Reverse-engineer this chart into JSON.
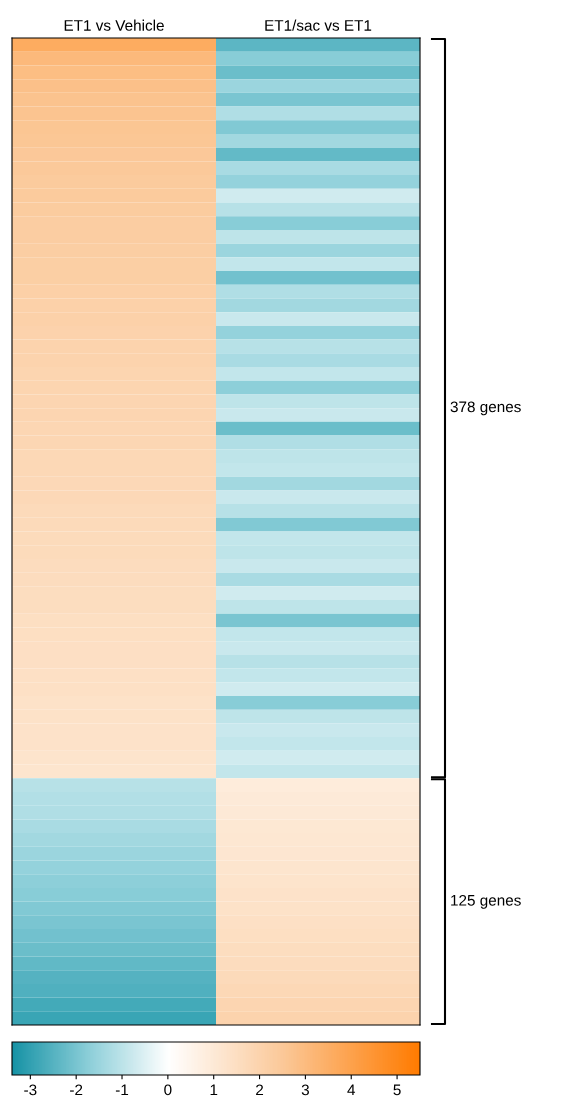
{
  "chart_data": {
    "type": "heatmap",
    "categories": [
      "ET1 vs Vehicle",
      "ET1/sac vs ET1"
    ],
    "y_categories": [
      null,
      null,
      null,
      null,
      null,
      null,
      null,
      null,
      null,
      null,
      null,
      null,
      null,
      null,
      null,
      null,
      null,
      null,
      null,
      null,
      null,
      null,
      null,
      null,
      null,
      null,
      null,
      null,
      null,
      null,
      null,
      null,
      null,
      null,
      null,
      null,
      null,
      null,
      null,
      null,
      null,
      null,
      null,
      null,
      null,
      null,
      null,
      null,
      null,
      null,
      null,
      null,
      null,
      null,
      null,
      null,
      null,
      null,
      null,
      null,
      null,
      null,
      null,
      null,
      null,
      null,
      null,
      null,
      null,
      null,
      null,
      null
    ],
    "cells": [
      [
        3.6,
        -2.4
      ],
      [
        3.1,
        -1.8
      ],
      [
        2.9,
        -2.2
      ],
      [
        2.8,
        -1.5
      ],
      [
        2.7,
        -2.0
      ],
      [
        2.65,
        -1.2
      ],
      [
        2.6,
        -1.9
      ],
      [
        2.55,
        -1.4
      ],
      [
        2.5,
        -2.3
      ],
      [
        2.45,
        -1.3
      ],
      [
        2.4,
        -1.6
      ],
      [
        2.4,
        -0.7
      ],
      [
        2.35,
        -1.1
      ],
      [
        2.3,
        -1.8
      ],
      [
        2.3,
        -1.0
      ],
      [
        2.25,
        -1.5
      ],
      [
        2.2,
        -0.9
      ],
      [
        2.2,
        -2.1
      ],
      [
        2.15,
        -1.2
      ],
      [
        2.1,
        -1.4
      ],
      [
        2.1,
        -0.8
      ],
      [
        2.05,
        -1.6
      ],
      [
        2.0,
        -1.1
      ],
      [
        2.0,
        -1.3
      ],
      [
        1.95,
        -0.9
      ],
      [
        1.95,
        -1.7
      ],
      [
        1.9,
        -1.0
      ],
      [
        1.9,
        -0.8
      ],
      [
        1.85,
        -2.2
      ],
      [
        1.85,
        -1.2
      ],
      [
        1.8,
        -1.0
      ],
      [
        1.8,
        -0.9
      ],
      [
        1.75,
        -1.4
      ],
      [
        1.75,
        -0.8
      ],
      [
        1.7,
        -1.1
      ],
      [
        1.7,
        -1.9
      ],
      [
        1.65,
        -0.9
      ],
      [
        1.65,
        -1.0
      ],
      [
        1.6,
        -0.8
      ],
      [
        1.6,
        -1.3
      ],
      [
        1.55,
        -0.7
      ],
      [
        1.55,
        -1.0
      ],
      [
        1.5,
        -2.0
      ],
      [
        1.5,
        -0.9
      ],
      [
        1.45,
        -0.8
      ],
      [
        1.45,
        -1.1
      ],
      [
        1.4,
        -0.9
      ],
      [
        1.4,
        -0.7
      ],
      [
        1.35,
        -1.8
      ],
      [
        1.35,
        -1.0
      ],
      [
        1.3,
        -0.8
      ],
      [
        1.3,
        -0.9
      ],
      [
        1.25,
        -0.7
      ],
      [
        1.2,
        -0.9
      ],
      [
        -1.1,
        0.9
      ],
      [
        -1.15,
        0.95
      ],
      [
        -1.2,
        1.0
      ],
      [
        -1.3,
        1.05
      ],
      [
        -1.4,
        1.1
      ],
      [
        -1.5,
        1.15
      ],
      [
        -1.6,
        1.2
      ],
      [
        -1.7,
        1.25
      ],
      [
        -1.8,
        1.3
      ],
      [
        -1.9,
        1.35
      ],
      [
        -2.0,
        1.4
      ],
      [
        -2.1,
        1.5
      ],
      [
        -2.2,
        1.55
      ],
      [
        -2.35,
        1.6
      ],
      [
        -2.5,
        1.7
      ],
      [
        -2.6,
        1.8
      ],
      [
        -2.75,
        1.9
      ],
      [
        -2.9,
        2.0
      ]
    ],
    "clim": [
      -3.4,
      5.5
    ],
    "cticks": [
      -3,
      -2,
      -1,
      0,
      1,
      2,
      3,
      4,
      5
    ],
    "annotations": [
      "378 genes",
      "125 genes"
    ]
  }
}
